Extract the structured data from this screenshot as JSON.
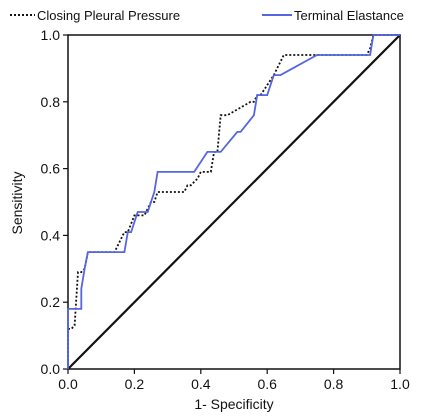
{
  "chart_data": {
    "type": "line",
    "title": "",
    "xlabel": "1- Specificity",
    "ylabel": "Sensitivity",
    "xlim": [
      0.0,
      1.0
    ],
    "ylim": [
      0.0,
      1.0
    ],
    "x_ticks": [
      "0.0",
      "0.2",
      "0.4",
      "0.6",
      "0.8",
      "1.0"
    ],
    "y_ticks": [
      "0.0",
      "0.2",
      "0.4",
      "0.6",
      "0.8",
      "1.0"
    ],
    "grid": false,
    "legend_position": "top",
    "series": [
      {
        "name": "Closing Pleural Pressure",
        "style": "dotted",
        "color": "#111111",
        "x": [
          0,
          0,
          0.01,
          0.02,
          0.03,
          0.04,
          0.05,
          0.06,
          0.14,
          0.17,
          0.18,
          0.2,
          0.23,
          0.25,
          0.26,
          0.27,
          0.28,
          0.3,
          0.35,
          0.36,
          0.37,
          0.39,
          0.4,
          0.42,
          0.43,
          0.44,
          0.45,
          0.46,
          0.47,
          0.48,
          0.55,
          0.56,
          0.57,
          0.58,
          0.62,
          0.65,
          0.66,
          0.75,
          0.9,
          0.91,
          0.92,
          0.95,
          1.0
        ],
        "y": [
          0,
          0.12,
          0.12,
          0.13,
          0.29,
          0.29,
          0.3,
          0.35,
          0.35,
          0.41,
          0.41,
          0.46,
          0.46,
          0.5,
          0.5,
          0.53,
          0.53,
          0.53,
          0.53,
          0.55,
          0.55,
          0.57,
          0.59,
          0.59,
          0.59,
          0.65,
          0.65,
          0.76,
          0.76,
          0.76,
          0.8,
          0.8,
          0.82,
          0.82,
          0.88,
          0.94,
          0.94,
          0.94,
          0.94,
          0.96,
          1.0,
          1.0,
          1.0
        ]
      },
      {
        "name": "Terminal Elastance",
        "style": "solid",
        "color": "#5566e0",
        "x": [
          0,
          0,
          0.04,
          0.04,
          0.05,
          0.06,
          0.16,
          0.17,
          0.18,
          0.19,
          0.21,
          0.23,
          0.24,
          0.26,
          0.27,
          0.38,
          0.38,
          0.42,
          0.44,
          0.46,
          0.51,
          0.52,
          0.56,
          0.57,
          0.58,
          0.59,
          0.6,
          0.62,
          0.63,
          0.64,
          0.75,
          0.76,
          0.9,
          0.91,
          0.92,
          1.0
        ],
        "y": [
          0,
          0.18,
          0.18,
          0.24,
          0.3,
          0.35,
          0.35,
          0.35,
          0.41,
          0.41,
          0.47,
          0.47,
          0.47,
          0.53,
          0.59,
          0.59,
          0.59,
          0.65,
          0.65,
          0.65,
          0.71,
          0.71,
          0.76,
          0.82,
          0.82,
          0.82,
          0.82,
          0.88,
          0.88,
          0.88,
          0.94,
          0.94,
          0.94,
          0.94,
          1.0,
          1.0
        ]
      }
    ],
    "reference_line": {
      "x": [
        0,
        1
      ],
      "y": [
        0,
        1
      ],
      "color": "#111111"
    }
  }
}
